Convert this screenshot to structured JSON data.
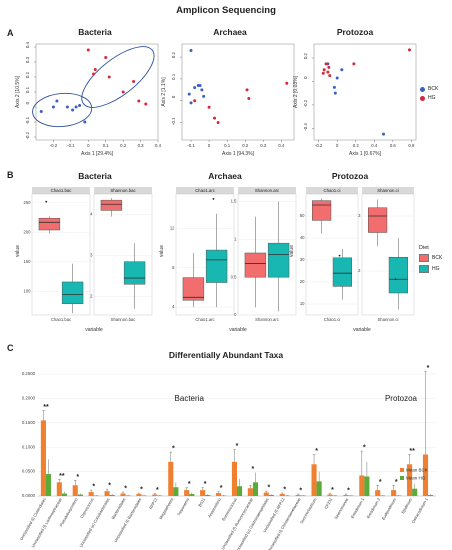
{
  "header": {
    "title": "Amplicon Sequencing",
    "panel_a": "A",
    "panel_b": "B",
    "panel_c": "C",
    "c_title": "Differentially Abundant Taxa"
  },
  "colors": {
    "bck_point": "#3b5fc4",
    "hg_point": "#d9263b",
    "bck_box": "#f26d6d",
    "hg_box": "#19b7b2",
    "bck_bar": "#f07f2f",
    "hg_bar": "#5aaa3c",
    "ellipse": "#2d4f9b"
  },
  "legend_a": {
    "items": [
      "BCK",
      "HG"
    ]
  },
  "legend_b": {
    "title": "Diet",
    "items": [
      "BCK",
      "HG"
    ]
  },
  "legend_c": {
    "items": [
      "Mean BCK",
      "Mean HG"
    ]
  },
  "chart_data": [
    {
      "id": "a-bacteria",
      "type": "scatter",
      "title": "Bacteria",
      "xlabel": "Axis 1 [29.4%]",
      "ylabel": "Axis 2 [10.5%]",
      "xlim": [
        -0.3,
        0.4
      ],
      "ylim": [
        -0.22,
        0.42
      ],
      "xticks": [
        -0.2,
        -0.1,
        0,
        0.1,
        0.2,
        0.3,
        0.4
      ],
      "ytick_labels": [
        "-0.2",
        "-0.1",
        "0",
        "0.1",
        "0.2",
        "0.3",
        "0.4"
      ],
      "yticks": [
        -0.2,
        -0.1,
        0,
        0.1,
        0.2,
        0.3,
        0.4
      ],
      "series": [
        {
          "name": "BCK",
          "x": [
            -0.27,
            -0.18,
            -0.12,
            -0.09,
            -0.07,
            -0.05,
            -0.02,
            -0.2
          ],
          "y": [
            -0.03,
            0.04,
            0.0,
            -0.02,
            0.0,
            0.01,
            -0.1,
            0.0
          ]
        },
        {
          "name": "HG",
          "x": [
            0.0,
            0.04,
            0.1,
            0.12,
            0.2,
            0.26,
            0.29,
            0.33,
            0.03
          ],
          "y": [
            0.38,
            0.25,
            0.33,
            0.2,
            0.1,
            0.17,
            0.04,
            0.02,
            0.22
          ]
        }
      ],
      "ellipses": [
        {
          "cx": -0.15,
          "cy": -0.02,
          "rx": 0.17,
          "ry": 0.11,
          "angle": -5
        },
        {
          "cx": 0.17,
          "cy": 0.2,
          "rx": 0.25,
          "ry": 0.12,
          "angle": -38
        }
      ]
    },
    {
      "id": "a-archaea",
      "type": "scatter",
      "title": "Archaea",
      "xlabel": "Axis 1 [94.3%]",
      "ylabel": "Axis 2 [1.1%]",
      "xlim": [
        -0.15,
        0.47
      ],
      "ylim": [
        -0.18,
        0.26
      ],
      "xticks": [
        -0.1,
        0,
        0.1,
        0.2,
        0.3,
        0.4
      ],
      "ytick_labels": [
        "-0.1",
        "0",
        "0.1",
        "0.2"
      ],
      "yticks": [
        -0.1,
        0,
        0.1,
        0.2
      ],
      "series": [
        {
          "name": "BCK",
          "x": [
            -0.1,
            -0.11,
            -0.08,
            -0.06,
            -0.05,
            -0.04,
            -0.03,
            -0.1
          ],
          "y": [
            0.23,
            0.03,
            0.06,
            0.07,
            0.07,
            0.05,
            0.02,
            -0.01
          ]
        },
        {
          "name": "HG",
          "x": [
            0.0,
            0.03,
            0.05,
            0.21,
            0.22,
            0.43,
            -0.08
          ],
          "y": [
            -0.03,
            -0.08,
            -0.1,
            0.05,
            0.01,
            0.08,
            0.0
          ]
        }
      ]
    },
    {
      "id": "a-protozoa",
      "type": "scatter",
      "title": "Protozoa",
      "xlabel": "Axis 1 [0.67%]",
      "ylabel": "Axis 2 [0.03%]",
      "xlim": [
        -0.25,
        0.85
      ],
      "ylim": [
        -0.5,
        0.32
      ],
      "xticks": [
        -0.2,
        0,
        0.2,
        0.4,
        0.6,
        0.8
      ],
      "ytick_labels": [
        "-0.4",
        "-0.2",
        "0",
        "0.2"
      ],
      "yticks": [
        -0.4,
        -0.2,
        0,
        0.2
      ],
      "series": [
        {
          "name": "BCK",
          "x": [
            0.05,
            -0.03,
            -0.02,
            0.0,
            -0.1,
            0.5
          ],
          "y": [
            0.1,
            -0.05,
            -0.1,
            0.03,
            0.15,
            -0.45
          ]
        },
        {
          "name": "HG",
          "x": [
            -0.15,
            -0.14,
            -0.12,
            -0.1,
            -0.09,
            -0.08,
            0.18,
            0.78
          ],
          "y": [
            0.07,
            0.1,
            0.15,
            0.08,
            0.12,
            0.05,
            0.15,
            0.27
          ]
        }
      ]
    },
    {
      "id": "b-bacteria",
      "type": "box",
      "title": "Bacteria",
      "ylabel": "value",
      "xlabel": "variable",
      "facets": [
        {
          "label": "Chao1.bac",
          "ylim": [
            60,
            265
          ],
          "yticks": [
            100,
            150,
            200,
            250
          ],
          "boxes": [
            {
              "group": "BCK",
              "min": 198,
              "q1": 204,
              "median": 217,
              "q3": 224,
              "max": 227,
              "outliers": [
                252
              ]
            },
            {
              "group": "HG",
              "min": 63,
              "q1": 79,
              "median": 95,
              "q3": 116,
              "max": 147,
              "outliers": []
            }
          ]
        },
        {
          "label": "Shannon.bac",
          "ylim": [
            1.55,
            4.5
          ],
          "yticks": [
            2,
            3,
            4
          ],
          "boxes": [
            {
              "group": "BCK",
              "min": 3.95,
              "q1": 4.1,
              "median": 4.25,
              "q3": 4.35,
              "max": 4.4,
              "outliers": []
            },
            {
              "group": "HG",
              "min": 1.7,
              "q1": 2.3,
              "median": 2.45,
              "q3": 2.85,
              "max": 3.3,
              "outliers": []
            }
          ]
        }
      ]
    },
    {
      "id": "b-archaea",
      "type": "box",
      "title": "Archaea",
      "ylabel": "value",
      "xlabel": "variable",
      "facets": [
        {
          "label": "Chao1.arc",
          "ylim": [
            3.2,
            15.5
          ],
          "yticks": [
            4,
            8,
            12
          ],
          "boxes": [
            {
              "group": "BCK",
              "min": 4.0,
              "q1": 4.7,
              "median": 5.0,
              "q3": 7.0,
              "max": 9.5,
              "outliers": []
            },
            {
              "group": "HG",
              "min": 4.0,
              "q1": 6.5,
              "median": 8.8,
              "q3": 9.8,
              "max": 13.5,
              "outliers": [
                15
              ]
            }
          ]
        },
        {
          "label": "Shannon.arc",
          "ylim": [
            0,
            1.6
          ],
          "yticks": [
            0.0,
            0.5,
            1.0,
            1.5
          ],
          "boxes": [
            {
              "group": "BCK",
              "min": 0.1,
              "q1": 0.5,
              "median": 0.68,
              "q3": 0.82,
              "max": 1.3,
              "outliers": []
            },
            {
              "group": "HG",
              "min": 0.05,
              "q1": 0.5,
              "median": 0.8,
              "q3": 0.95,
              "max": 1.5,
              "outliers": []
            }
          ]
        }
      ]
    },
    {
      "id": "b-protozoa",
      "type": "box",
      "title": "Protozoa",
      "ylabel": "value",
      "xlabel": "variable",
      "facets": [
        {
          "label": "Chao1.ci",
          "ylim": [
            5,
            60
          ],
          "yticks": [
            10,
            20,
            30,
            40,
            50
          ],
          "boxes": [
            {
              "group": "BCK",
              "min": 42,
              "q1": 48,
              "median": 55,
              "q3": 57,
              "max": 58,
              "outliers": []
            },
            {
              "group": "HG",
              "min": 12,
              "q1": 18,
              "median": 24,
              "q3": 31,
              "max": 35,
              "outliers": [
                32
              ]
            }
          ]
        },
        {
          "label": "Shannon.ci",
          "ylim": [
            1.2,
            3.4
          ],
          "yticks": [
            2,
            3
          ],
          "boxes": [
            {
              "group": "BCK",
              "min": 2.45,
              "q1": 2.7,
              "median": 3.0,
              "q3": 3.15,
              "max": 3.3,
              "outliers": []
            },
            {
              "group": "HG",
              "min": 1.3,
              "q1": 1.6,
              "median": 1.85,
              "q3": 2.25,
              "max": 2.6,
              "outliers": [
                1.85
              ]
            }
          ]
        }
      ]
    },
    {
      "id": "c-taxa",
      "type": "bar",
      "title": "Differentially Abundant Taxa",
      "group_labels": [
        "Bacteria",
        "Protozoa"
      ],
      "ylim": [
        0,
        0.25
      ],
      "yticks": [
        0,
        0.05,
        0.1,
        0.15,
        0.2,
        0.25
      ],
      "ytick_labels": [
        "0.0000",
        "0.0500",
        "0.1000",
        "0.1500",
        "0.2000",
        "0.2500"
      ],
      "categories": [
        "Unclassified (f) Clostridiales",
        "Unclassified (f) Lachnospiraceae",
        "Pseudobutyrivibrio",
        "Coprococcus",
        "Unclassified (o) Coriobacteriales",
        "Bacteroidales",
        "Unclassified (f) Bacteroidales",
        "RFP12",
        "Megasphaera",
        "Treponema",
        "BS11",
        "Anaerovibrio",
        "Ruminococcus",
        "Unclassified (f) Ruminococcaceae",
        "Unclassified (o) Gastranaerophilales",
        "Unclassified (f) RFP12",
        "Unclassified (f) Christensenellaceae",
        "Succiniclasticum",
        "CF231",
        "Selenomonas",
        "Entodinium 1",
        "Entodinium 2",
        "Eudiplodinium",
        "Epidinium",
        "Ostracodinium 1"
      ],
      "series": [
        {
          "name": "Mean BCK",
          "values": [
            0.155,
            0.028,
            0.022,
            0.008,
            0.01,
            0.005,
            0.004,
            0.003,
            0.07,
            0.012,
            0.012,
            0.006,
            0.07,
            0.016,
            0.007,
            0.004,
            0.002,
            0.065,
            0.003,
            0.002,
            0.042,
            0.012,
            0.012,
            0.065,
            0.085
          ],
          "errors": [
            0.02,
            0.006,
            0.01,
            0.004,
            0.004,
            0.003,
            0.002,
            0.002,
            0.02,
            0.005,
            0.005,
            0.003,
            0.025,
            0.006,
            0.003,
            0.002,
            0.002,
            0.02,
            0.002,
            0.002,
            0.05,
            0.01,
            0.01,
            0.02,
            0.17
          ]
        },
        {
          "name": "Mean HG",
          "values": [
            0.045,
            0.005,
            0.003,
            0.001,
            0.002,
            0.001,
            0.001,
            0.001,
            0.018,
            0.004,
            0.002,
            0.001,
            0.02,
            0.028,
            0.002,
            0.001,
            0.001,
            0.03,
            0.001,
            0.001,
            0.04,
            0.001,
            0.001,
            0.015,
            0.002
          ],
          "errors": [
            0.03,
            0.004,
            0.002,
            0.001,
            0.002,
            0.001,
            0.001,
            0.001,
            0.01,
            0.003,
            0.002,
            0.001,
            0.015,
            0.02,
            0.002,
            0.001,
            0.001,
            0.02,
            0.001,
            0.001,
            0.03,
            0.001,
            0.001,
            0.01,
            0.002
          ]
        }
      ],
      "significance": [
        "**",
        "**",
        "*",
        "*",
        "*",
        "*",
        "*",
        "*",
        "*",
        "*",
        "*",
        "*",
        "*",
        "*",
        "*",
        "*",
        "*",
        "*",
        "*",
        "*",
        "*",
        "*",
        "*",
        "**",
        "*"
      ]
    }
  ]
}
